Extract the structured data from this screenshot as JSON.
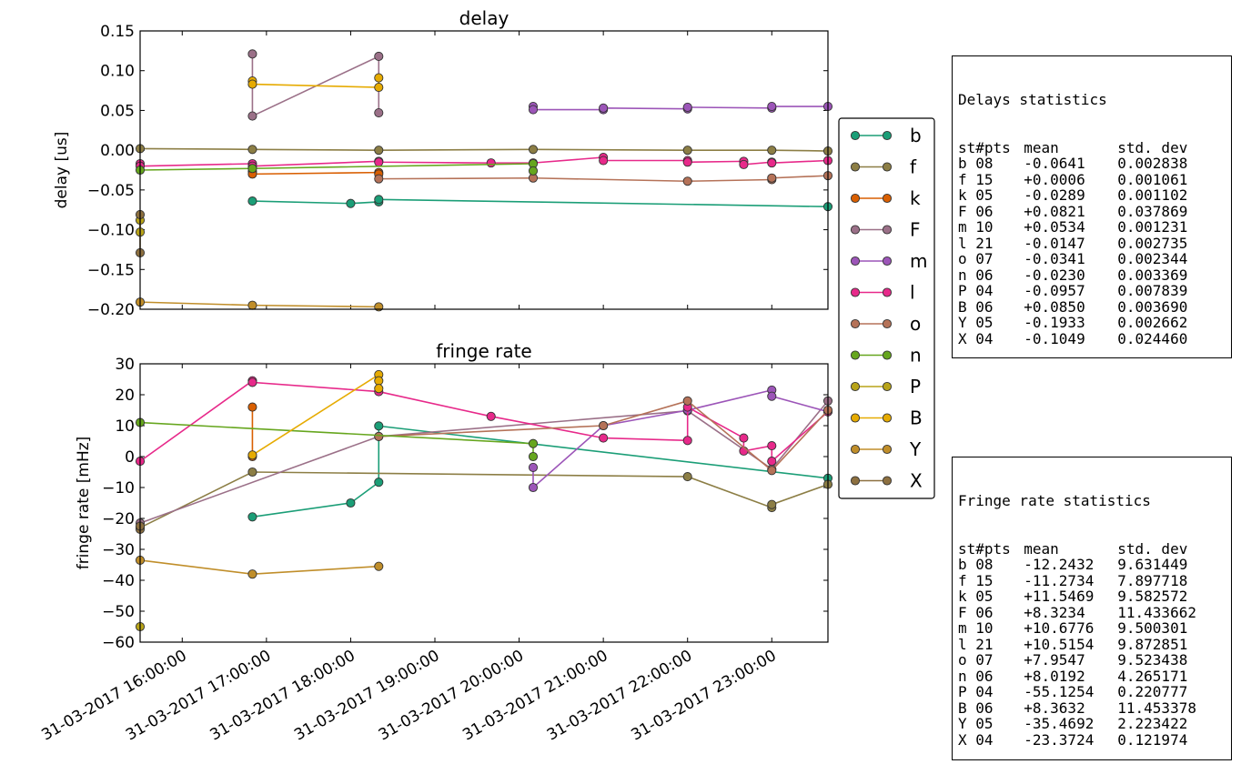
{
  "chart_data": [
    {
      "type": "line",
      "title": "delay",
      "ylabel": "delay [us]",
      "xlim": [
        "2017-03-31 15:30:00",
        "2017-03-31 23:40:00"
      ],
      "ylim": [
        -0.2,
        0.15
      ],
      "yticks": [
        0.15,
        0.1,
        0.05,
        0.0,
        -0.05,
        -0.1,
        -0.15,
        -0.2
      ],
      "ytick_labels": [
        "0.15",
        "0.10",
        "0.05",
        "0.00",
        "−0.05",
        "−0.10",
        "−0.15",
        "−0.20"
      ],
      "series": [
        {
          "name": "b",
          "points": [
            [
              "2017-03-31 16:50",
              -0.064
            ],
            [
              "2017-03-31 18:00",
              -0.067
            ],
            [
              "2017-03-31 18:20",
              -0.065
            ],
            [
              "2017-03-31 18:20",
              -0.062
            ],
            [
              "2017-03-31 23:40",
              -0.071
            ]
          ]
        },
        {
          "name": "f",
          "points": [
            [
              "2017-03-31 15:30",
              0.002
            ],
            [
              "2017-03-31 16:50",
              0.001
            ],
            [
              "2017-03-31 18:20",
              0.0
            ],
            [
              "2017-03-31 20:10",
              0.001
            ],
            [
              "2017-03-31 22:00",
              0.0
            ],
            [
              "2017-03-31 23:00",
              0.0
            ],
            [
              "2017-03-31 23:40",
              -0.001
            ]
          ]
        },
        {
          "name": "k",
          "points": [
            [
              "2017-03-31 16:50",
              -0.027
            ],
            [
              "2017-03-31 16:50",
              -0.03
            ],
            [
              "2017-03-31 18:20",
              -0.028
            ],
            [
              "2017-03-31 18:20",
              -0.03
            ]
          ]
        },
        {
          "name": "F",
          "points": [
            [
              "2017-03-31 16:50",
              0.121
            ],
            [
              "2017-03-31 16:50",
              0.043
            ],
            [
              "2017-03-31 18:20",
              0.118
            ],
            [
              "2017-03-31 18:20",
              0.047
            ]
          ]
        },
        {
          "name": "m",
          "points": [
            [
              "2017-03-31 20:10",
              0.055
            ],
            [
              "2017-03-31 20:10",
              0.051
            ],
            [
              "2017-03-31 21:00",
              0.051
            ],
            [
              "2017-03-31 21:00",
              0.053
            ],
            [
              "2017-03-31 22:00",
              0.052
            ],
            [
              "2017-03-31 22:00",
              0.054
            ],
            [
              "2017-03-31 23:00",
              0.053
            ],
            [
              "2017-03-31 23:00",
              0.055
            ],
            [
              "2017-03-31 23:40",
              0.055
            ]
          ]
        },
        {
          "name": "l",
          "points": [
            [
              "2017-03-31 15:30",
              -0.017
            ],
            [
              "2017-03-31 15:30",
              -0.02
            ],
            [
              "2017-03-31 16:50",
              -0.017
            ],
            [
              "2017-03-31 16:50",
              -0.02
            ],
            [
              "2017-03-31 18:20",
              -0.014
            ],
            [
              "2017-03-31 18:20",
              -0.015
            ],
            [
              "2017-03-31 19:40",
              -0.016
            ],
            [
              "2017-03-31 20:10",
              -0.016
            ],
            [
              "2017-03-31 21:00",
              -0.009
            ],
            [
              "2017-03-31 21:00",
              -0.013
            ],
            [
              "2017-03-31 22:00",
              -0.013
            ],
            [
              "2017-03-31 22:00",
              -0.015
            ],
            [
              "2017-03-31 22:40",
              -0.014
            ],
            [
              "2017-03-31 22:40",
              -0.018
            ],
            [
              "2017-03-31 23:00",
              -0.015
            ],
            [
              "2017-03-31 23:00",
              -0.016
            ],
            [
              "2017-03-31 23:40",
              -0.013
            ]
          ]
        },
        {
          "name": "o",
          "points": [
            [
              "2017-03-31 18:20",
              -0.036
            ],
            [
              "2017-03-31 20:10",
              -0.035
            ],
            [
              "2017-03-31 22:00",
              -0.039
            ],
            [
              "2017-03-31 23:00",
              -0.037
            ],
            [
              "2017-03-31 23:00",
              -0.035
            ],
            [
              "2017-03-31 23:40",
              -0.032
            ]
          ]
        },
        {
          "name": "n",
          "points": [
            [
              "2017-03-31 15:30",
              -0.025
            ],
            [
              "2017-03-31 16:50",
              -0.023
            ],
            [
              "2017-03-31 20:10",
              -0.017
            ],
            [
              "2017-03-31 20:10",
              -0.026
            ]
          ]
        },
        {
          "name": "P",
          "points": [
            [
              "2017-03-31 15:30",
              -0.088
            ],
            [
              "2017-03-31 15:30",
              -0.103
            ]
          ]
        },
        {
          "name": "B",
          "points": [
            [
              "2017-03-31 16:50",
              0.087
            ],
            [
              "2017-03-31 16:50",
              0.083
            ],
            [
              "2017-03-31 18:20",
              0.079
            ],
            [
              "2017-03-31 18:20",
              0.091
            ]
          ]
        },
        {
          "name": "Y",
          "points": [
            [
              "2017-03-31 15:30",
              -0.191
            ],
            [
              "2017-03-31 16:50",
              -0.195
            ],
            [
              "2017-03-31 18:20",
              -0.197
            ]
          ]
        },
        {
          "name": "X",
          "points": [
            [
              "2017-03-31 15:30",
              -0.081
            ],
            [
              "2017-03-31 15:30",
              -0.129
            ]
          ]
        }
      ]
    },
    {
      "type": "line",
      "title": "fringe rate",
      "ylabel": "fringe rate [mHz]",
      "xlim": [
        "2017-03-31 15:30:00",
        "2017-03-31 23:40:00"
      ],
      "ylim": [
        -60,
        30
      ],
      "yticks": [
        30,
        20,
        10,
        0,
        -10,
        -20,
        -30,
        -40,
        -50,
        -60
      ],
      "ytick_labels": [
        "30",
        "20",
        "10",
        "0",
        "−10",
        "−20",
        "−30",
        "−40",
        "−50",
        "−60"
      ],
      "xticks": [
        "2017-03-31 16:00:00",
        "2017-03-31 17:00:00",
        "2017-03-31 18:00:00",
        "2017-03-31 19:00:00",
        "2017-03-31 20:00:00",
        "2017-03-31 21:00:00",
        "2017-03-31 22:00:00",
        "2017-03-31 23:00:00"
      ],
      "xtick_labels": [
        "31-03-2017 16:00:00",
        "31-03-2017 17:00:00",
        "31-03-2017 18:00:00",
        "31-03-2017 19:00:00",
        "31-03-2017 20:00:00",
        "31-03-2017 21:00:00",
        "31-03-2017 22:00:00",
        "31-03-2017 23:00:00"
      ],
      "series": [
        {
          "name": "b",
          "points": [
            [
              "2017-03-31 16:50",
              -19.5
            ],
            [
              "2017-03-31 18:00",
              -15.0
            ],
            [
              "2017-03-31 18:20",
              -8.3
            ],
            [
              "2017-03-31 18:20",
              9.9
            ],
            [
              "2017-03-31 23:40",
              -7.0
            ]
          ]
        },
        {
          "name": "f",
          "points": [
            [
              "2017-03-31 15:30",
              -23.0
            ],
            [
              "2017-03-31 16:50",
              -5.0
            ],
            [
              "2017-03-31 22:00",
              -6.5
            ],
            [
              "2017-03-31 23:00",
              -16.5
            ],
            [
              "2017-03-31 23:00",
              -15.5
            ],
            [
              "2017-03-31 23:40",
              -9.0
            ]
          ]
        },
        {
          "name": "k",
          "points": [
            [
              "2017-03-31 16:50",
              16.0
            ],
            [
              "2017-03-31 16:50",
              0.0
            ]
          ]
        },
        {
          "name": "F",
          "points": [
            [
              "2017-03-31 15:30",
              -21.5
            ],
            [
              "2017-03-31 18:20",
              6.5
            ],
            [
              "2017-03-31 22:00",
              14.8
            ],
            [
              "2017-03-31 23:00",
              -4.0
            ],
            [
              "2017-03-31 23:40",
              18.0
            ]
          ]
        },
        {
          "name": "m",
          "points": [
            [
              "2017-03-31 20:10",
              -3.5
            ],
            [
              "2017-03-31 20:10",
              -10.0
            ],
            [
              "2017-03-31 21:00",
              10.0
            ],
            [
              "2017-03-31 22:00",
              15.0
            ],
            [
              "2017-03-31 23:00",
              21.5
            ],
            [
              "2017-03-31 23:00",
              19.5
            ],
            [
              "2017-03-31 23:40",
              14.5
            ]
          ]
        },
        {
          "name": "l",
          "points": [
            [
              "2017-03-31 15:30",
              -1.5
            ],
            [
              "2017-03-31 16:50",
              24.5
            ],
            [
              "2017-03-31 16:50",
              24.0
            ],
            [
              "2017-03-31 18:20",
              21.0
            ],
            [
              "2017-03-31 19:40",
              13.0
            ],
            [
              "2017-03-31 21:00",
              6.0
            ],
            [
              "2017-03-31 22:00",
              5.2
            ],
            [
              "2017-03-31 22:00",
              16.0
            ],
            [
              "2017-03-31 22:40",
              6.0
            ],
            [
              "2017-03-31 22:40",
              1.8
            ],
            [
              "2017-03-31 23:00",
              3.5
            ],
            [
              "2017-03-31 23:00",
              -1.5
            ],
            [
              "2017-03-31 23:40",
              14.5
            ]
          ]
        },
        {
          "name": "o",
          "points": [
            [
              "2017-03-31 18:20",
              6.5
            ],
            [
              "2017-03-31 21:00",
              10.0
            ],
            [
              "2017-03-31 22:00",
              18.0
            ],
            [
              "2017-03-31 23:00",
              -4.5
            ],
            [
              "2017-03-31 23:40",
              15.0
            ]
          ]
        },
        {
          "name": "n",
          "points": [
            [
              "2017-03-31 15:30",
              11.0
            ],
            [
              "2017-03-31 20:10",
              4.2
            ],
            [
              "2017-03-31 20:10",
              0.0
            ]
          ]
        },
        {
          "name": "P",
          "points": [
            [
              "2017-03-31 15:30",
              -55.0
            ]
          ]
        },
        {
          "name": "B",
          "points": [
            [
              "2017-03-31 16:50",
              0.5
            ],
            [
              "2017-03-31 18:20",
              26.5
            ],
            [
              "2017-03-31 18:20",
              24.5
            ],
            [
              "2017-03-31 18:20",
              22.0
            ]
          ]
        },
        {
          "name": "Y",
          "points": [
            [
              "2017-03-31 15:30",
              -33.5
            ],
            [
              "2017-03-31 16:50",
              -38.0
            ],
            [
              "2017-03-31 18:20",
              -35.5
            ]
          ]
        },
        {
          "name": "X",
          "points": [
            [
              "2017-03-31 15:30",
              -23.5
            ],
            [
              "2017-03-31 15:30",
              -22.5
            ]
          ]
        }
      ]
    }
  ],
  "legend": {
    "placement": "right",
    "entries": [
      {
        "label": "b",
        "color": "#1b9e77"
      },
      {
        "label": "f",
        "color": "#8c7e45"
      },
      {
        "label": "k",
        "color": "#d95f02"
      },
      {
        "label": "F",
        "color": "#9b7088"
      },
      {
        "label": "m",
        "color": "#9c55b8"
      },
      {
        "label": "l",
        "color": "#e7298a"
      },
      {
        "label": "o",
        "color": "#b57258"
      },
      {
        "label": "n",
        "color": "#66a61e"
      },
      {
        "label": "P",
        "color": "#b8a419"
      },
      {
        "label": "B",
        "color": "#e6ab02"
      },
      {
        "label": "Y",
        "color": "#c08e2a"
      },
      {
        "label": "X",
        "color": "#8d7040"
      }
    ]
  },
  "delay_stats": {
    "title": "Delays statistics",
    "headers": [
      "st",
      "#pts",
      "mean",
      "std. dev"
    ],
    "rows": [
      [
        "b",
        "08",
        "-0.0641",
        "0.002838"
      ],
      [
        "f",
        "15",
        "+0.0006",
        "0.001061"
      ],
      [
        "k",
        "05",
        "-0.0289",
        "0.001102"
      ],
      [
        "F",
        "06",
        "+0.0821",
        "0.037869"
      ],
      [
        "m",
        "10",
        "+0.0534",
        "0.001231"
      ],
      [
        "l",
        "21",
        "-0.0147",
        "0.002735"
      ],
      [
        "o",
        "07",
        "-0.0341",
        "0.002344"
      ],
      [
        "n",
        "06",
        "-0.0230",
        "0.003369"
      ],
      [
        "P",
        "04",
        "-0.0957",
        "0.007839"
      ],
      [
        "B",
        "06",
        "+0.0850",
        "0.003690"
      ],
      [
        "Y",
        "05",
        "-0.1933",
        "0.002662"
      ],
      [
        "X",
        "04",
        "-0.1049",
        "0.024460"
      ]
    ]
  },
  "rate_stats": {
    "title": "Fringe rate statistics",
    "headers": [
      "st",
      "#pts",
      "mean",
      "std. dev"
    ],
    "rows": [
      [
        "b",
        "08",
        "-12.2432",
        "9.631449"
      ],
      [
        "f",
        "15",
        "-11.2734",
        "7.897718"
      ],
      [
        "k",
        "05",
        "+11.5469",
        "9.582572"
      ],
      [
        "F",
        "06",
        "+8.3234",
        "11.433662"
      ],
      [
        "m",
        "10",
        "+10.6776",
        "9.500301"
      ],
      [
        "l",
        "21",
        "+10.5154",
        "9.872851"
      ],
      [
        "o",
        "07",
        "+7.9547",
        "9.523438"
      ],
      [
        "n",
        "06",
        "+8.0192",
        "4.265171"
      ],
      [
        "P",
        "04",
        "-55.1254",
        "0.220777"
      ],
      [
        "B",
        "06",
        "+8.3632",
        "11.453378"
      ],
      [
        "Y",
        "05",
        "-35.4692",
        "2.223422"
      ],
      [
        "X",
        "04",
        "-23.3724",
        "0.121974"
      ]
    ]
  }
}
